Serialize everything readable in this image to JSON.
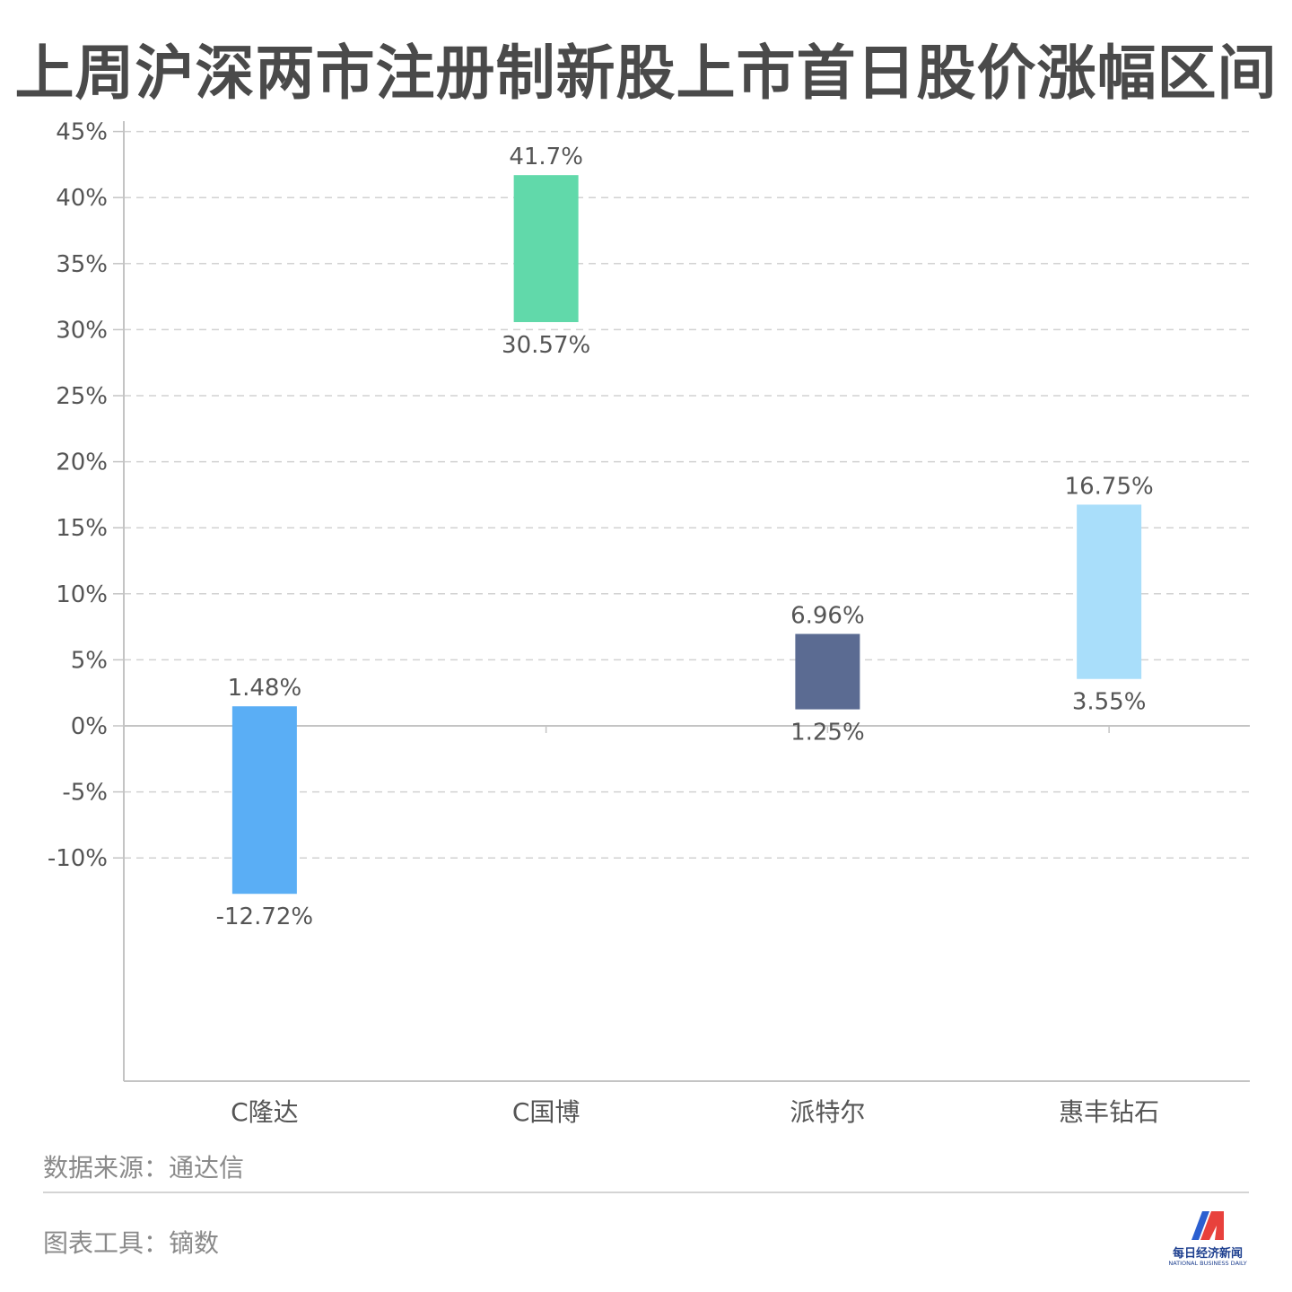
{
  "title": "上周沪深两市注册制新股上市首日股价涨幅区间",
  "chart_data": {
    "type": "bar",
    "subtype": "floating-range",
    "categories": [
      "C隆达",
      "C国博",
      "派特尔",
      "惠丰钻石"
    ],
    "series": [
      {
        "low": -12.72,
        "high": 1.48,
        "low_label": "-12.72%",
        "high_label": "1.48%",
        "color": "#5aaef5"
      },
      {
        "low": 30.57,
        "high": 41.7,
        "low_label": "30.57%",
        "high_label": "41.7%",
        "color": "#61d9aa"
      },
      {
        "low": 1.25,
        "high": 6.96,
        "low_label": "1.25%",
        "high_label": "6.96%",
        "color": "#5b6b92"
      },
      {
        "low": 3.55,
        "high": 16.75,
        "low_label": "3.55%",
        "high_label": "16.75%",
        "color": "#a9defa"
      }
    ],
    "y_ticks": [
      45,
      40,
      35,
      30,
      25,
      20,
      15,
      10,
      5,
      0,
      -5,
      -10
    ],
    "y_tick_labels": [
      "45%",
      "40%",
      "35%",
      "30%",
      "25%",
      "20%",
      "15%",
      "10%",
      "5%",
      "0%",
      "-5%",
      "-10%"
    ],
    "ylim": [
      -27,
      45
    ],
    "grid": true,
    "xlabel": "",
    "ylabel": ""
  },
  "footer": {
    "source": "数据来源：通达信",
    "tool": "图表工具：镝数"
  },
  "logo": {
    "name_cn": "每日经济新闻",
    "name_en": "NATIONAL BUSINESS DAILY"
  }
}
